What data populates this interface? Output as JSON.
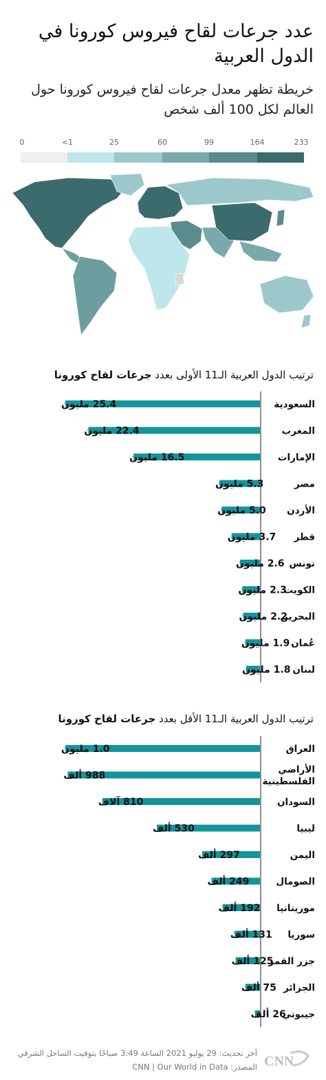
{
  "header": {
    "title": "عدد جرعات لقاح فيروس كورونا في الدول العربية",
    "subtitle": "خريطة تظهر معدل جرعات لقاح فيروس كورونا حول العالم  لكل 100 ألف شخص"
  },
  "legend": {
    "ticks": [
      "0",
      "<1",
      "25",
      "60",
      "99",
      "164",
      "233"
    ],
    "colors": [
      "#eeeeee",
      "#bfe6ea",
      "#9cc8cb",
      "#7aa9ab",
      "#5b8b8d",
      "#3c6b6d",
      "#1f4e51"
    ]
  },
  "map": {
    "icon": "world-map",
    "land_colors": {
      "north_america": "#3c6b6d",
      "south_america": "#6c9ea0",
      "europe": "#3c6b6d",
      "russia": "#9cc8cb",
      "africa": "#bfe6ea",
      "middle_east": "#5b8b8d",
      "china": "#3c6b6d",
      "south_asia": "#7aa9ab",
      "australia": "#9cc8cb"
    }
  },
  "chart_top": {
    "title_pre": "ترتيب الدول العربية الـ11 الأولى بعدد ",
    "title_bold": "جرعات لقاح كورونا"
  },
  "chart_bottom": {
    "title_pre": "ترتيب الدول العربية الـ11 الأقل بعدد ",
    "title_bold": "جرعات لقاح كورونا"
  },
  "chart_data": [
    {
      "type": "bar",
      "orientation": "horizontal",
      "title": "ترتيب الدول العربية الـ11 الأولى بعدد جرعات لقاح كورونا",
      "categories": [
        "السعودية",
        "المغرب",
        "الإمارات",
        "مصر",
        "الأردن",
        "قطر",
        "تونس",
        "الكويت",
        "البحرين",
        "عُمان",
        "لبنان"
      ],
      "values": [
        25.4,
        22.4,
        16.5,
        5.3,
        5.0,
        3.7,
        2.6,
        2.3,
        2.2,
        1.9,
        1.8
      ],
      "value_labels": [
        "25.4 مليون",
        "22.4 مليون",
        "16.5 مليون",
        "5.3 مليون",
        "5.0 مليون",
        "3.7 مليون",
        "2.6 مليون",
        "2.3 مليون",
        "2.2 مليون",
        "1.9 مليون",
        "1.8 مليون"
      ],
      "unit": "million",
      "bar_color": "#12959b"
    },
    {
      "type": "bar",
      "orientation": "horizontal",
      "title": "ترتيب الدول العربية الـ11 الأقل بعدد جرعات لقاح كورونا",
      "categories": [
        "العراق",
        "الأراضي الفلسطينية",
        "السودان",
        "ليبيا",
        "اليمن",
        "الصومال",
        "موريتانيا",
        "سوريا",
        "جزر القمر",
        "الجزائر",
        "جيبوتي"
      ],
      "values": [
        1000,
        988,
        810,
        530,
        297,
        249,
        192,
        131,
        125,
        75,
        26
      ],
      "value_labels": [
        "1.0 مليون",
        "988 ألف",
        "810 آلاف",
        "530 ألف",
        "297 ألف",
        "249 ألف",
        "192 ألف",
        "131 ألف",
        "125 ألف",
        "75 ألف",
        "26 ألف"
      ],
      "unit": "thousand",
      "bar_color": "#12959b"
    }
  ],
  "footer": {
    "updated": "آخر تحديث: 29 يوليو 2021 الساعة 3:49 صباحًا بتوقيت الساحل الشرقي",
    "source": "المصدر: CNN | Our World in Data",
    "logo_text": "CNN بالعربية"
  }
}
